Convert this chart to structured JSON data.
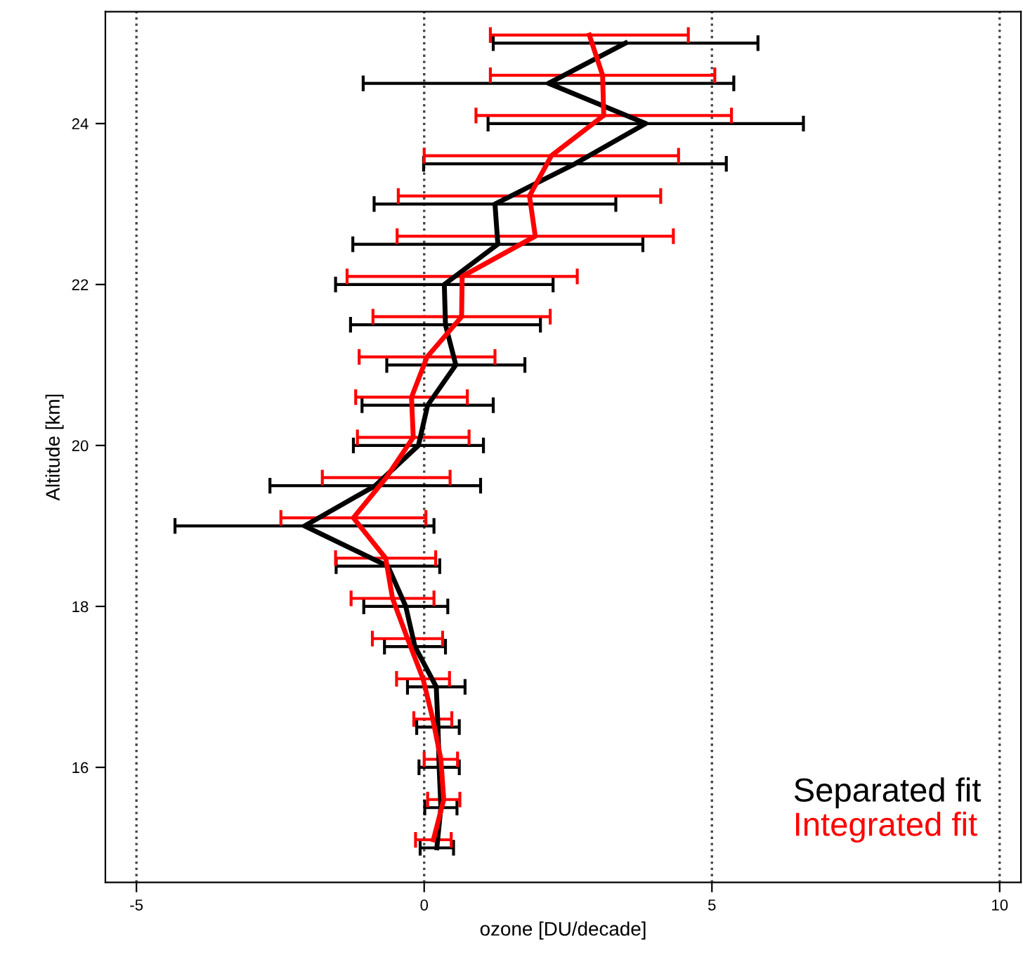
{
  "chart_data": {
    "type": "line",
    "xlabel": "ozone [DU/decade]",
    "ylabel": "Altitude [km]",
    "xlim": [
      -5.54,
      10.37
    ],
    "xticks": [
      -5,
      0,
      5,
      10
    ],
    "ylim": [
      14.57,
      25.39
    ],
    "yticks": [
      16,
      18,
      20,
      22,
      24
    ],
    "grid": "x",
    "legend": "bottom right",
    "marker": "none",
    "line_style": "solid",
    "series": [
      {
        "name": "Separated fit",
        "color": "#000000",
        "x": [
          0.22,
          0.29,
          0.26,
          0.24,
          0.21,
          -0.16,
          -0.32,
          -0.63,
          -2.08,
          -0.85,
          -0.1,
          0.06,
          0.55,
          0.37,
          0.35,
          1.28,
          1.23,
          2.62,
          3.85,
          2.16,
          3.5
        ],
        "values": [
          15.0,
          15.5,
          16.0,
          16.5,
          17.0,
          17.5,
          18.0,
          18.5,
          19.0,
          19.5,
          20.0,
          20.5,
          21.0,
          21.5,
          22.0,
          22.5,
          23.0,
          23.5,
          24.0,
          24.5,
          25.0
        ],
        "xerrors": [
          0.29,
          0.28,
          0.35,
          0.37,
          0.5,
          0.53,
          0.73,
          0.9,
          2.25,
          1.83,
          1.13,
          1.14,
          1.2,
          1.65,
          1.89,
          2.52,
          2.1,
          2.63,
          2.74,
          3.22,
          2.3
        ]
      },
      {
        "name": "Integrated fit",
        "color": "#ff0000",
        "x": [
          0.16,
          0.34,
          0.29,
          0.15,
          -0.02,
          -0.29,
          -0.55,
          -0.67,
          -1.23,
          -0.66,
          -0.19,
          -0.22,
          0.05,
          0.65,
          0.66,
          1.93,
          1.83,
          2.21,
          3.12,
          3.1,
          2.87
        ],
        "values": [
          15.1,
          15.6,
          16.1,
          16.6,
          17.1,
          17.6,
          18.1,
          18.6,
          19.1,
          19.6,
          20.1,
          20.6,
          21.1,
          21.6,
          22.1,
          22.6,
          23.1,
          23.6,
          24.1,
          24.6,
          25.1
        ],
        "xerrors": [
          0.31,
          0.28,
          0.29,
          0.33,
          0.46,
          0.61,
          0.72,
          0.87,
          1.26,
          1.11,
          0.97,
          0.97,
          1.18,
          1.54,
          2.0,
          2.4,
          2.28,
          2.21,
          2.22,
          1.95,
          1.72
        ]
      }
    ]
  }
}
